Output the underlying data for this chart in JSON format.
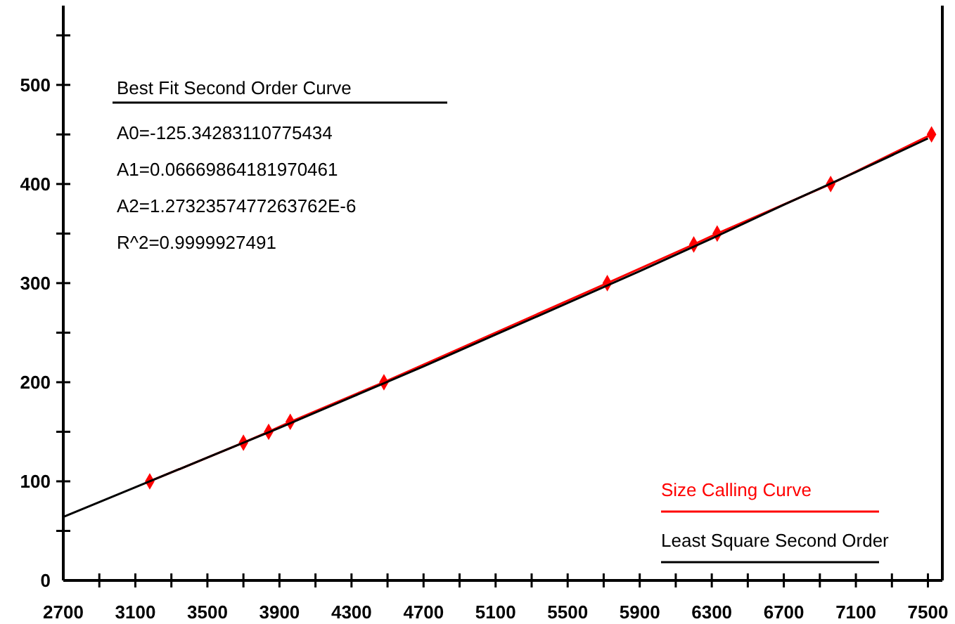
{
  "chart_data": {
    "type": "line",
    "x": [
      3180,
      3700,
      3840,
      3960,
      4480,
      5720,
      6200,
      6330,
      6960,
      7520
    ],
    "series": [
      {
        "name": "Size Calling Curve",
        "color": "#ff0000",
        "marker": "diamond",
        "values": [
          100,
          139,
          150,
          160,
          200,
          300,
          339,
          350,
          400,
          450
        ]
      },
      {
        "name": "Least Square Second Order",
        "color": "#000000",
        "marker": "none",
        "x": [
          2700,
          3100,
          3500,
          3900,
          4300,
          4700,
          5100,
          5500,
          5900,
          6300,
          6700,
          7100,
          7500
        ],
        "values": [
          64,
          94,
          124,
          154,
          185,
          216,
          248,
          280,
          312,
          345,
          379,
          412,
          446
        ]
      }
    ],
    "annotations": [
      "Best Fit Second Order Curve",
      "A0=-125.34283110775434",
      "A1=0.06669864181970461",
      "A2=1.2732357477263762E-6",
      "R^2=0.9999927491"
    ],
    "xlim": [
      2700,
      7580
    ],
    "xticks": [
      2700,
      {
        "value": 2900,
        "label": null
      },
      3100,
      {
        "value": 3300,
        "label": null
      },
      3500,
      {
        "value": 3700,
        "label": null
      },
      3900,
      {
        "value": 4100,
        "label": null
      },
      4300,
      {
        "value": 4500,
        "label": null
      },
      4700,
      {
        "value": 4900,
        "label": null
      },
      5100,
      {
        "value": 5300,
        "label": null
      },
      5500,
      {
        "value": 5700,
        "label": null
      },
      5900,
      {
        "value": 6100,
        "label": null
      },
      6300,
      {
        "value": 6500,
        "label": null
      },
      6700,
      {
        "value": 6900,
        "label": null
      },
      7100,
      {
        "value": 7300,
        "label": null
      },
      7500
    ],
    "ylim": [
      0,
      580
    ],
    "yticks": [
      0,
      {
        "value": 50,
        "label": null
      },
      100,
      {
        "value": 150,
        "label": null
      },
      200,
      {
        "value": 250,
        "label": null
      },
      300,
      {
        "value": 350,
        "label": null
      },
      400,
      {
        "value": 450,
        "label": null
      },
      500,
      {
        "value": 550,
        "label": null
      }
    ],
    "legend": "bottom right",
    "grid": false,
    "line_style": "solid"
  }
}
